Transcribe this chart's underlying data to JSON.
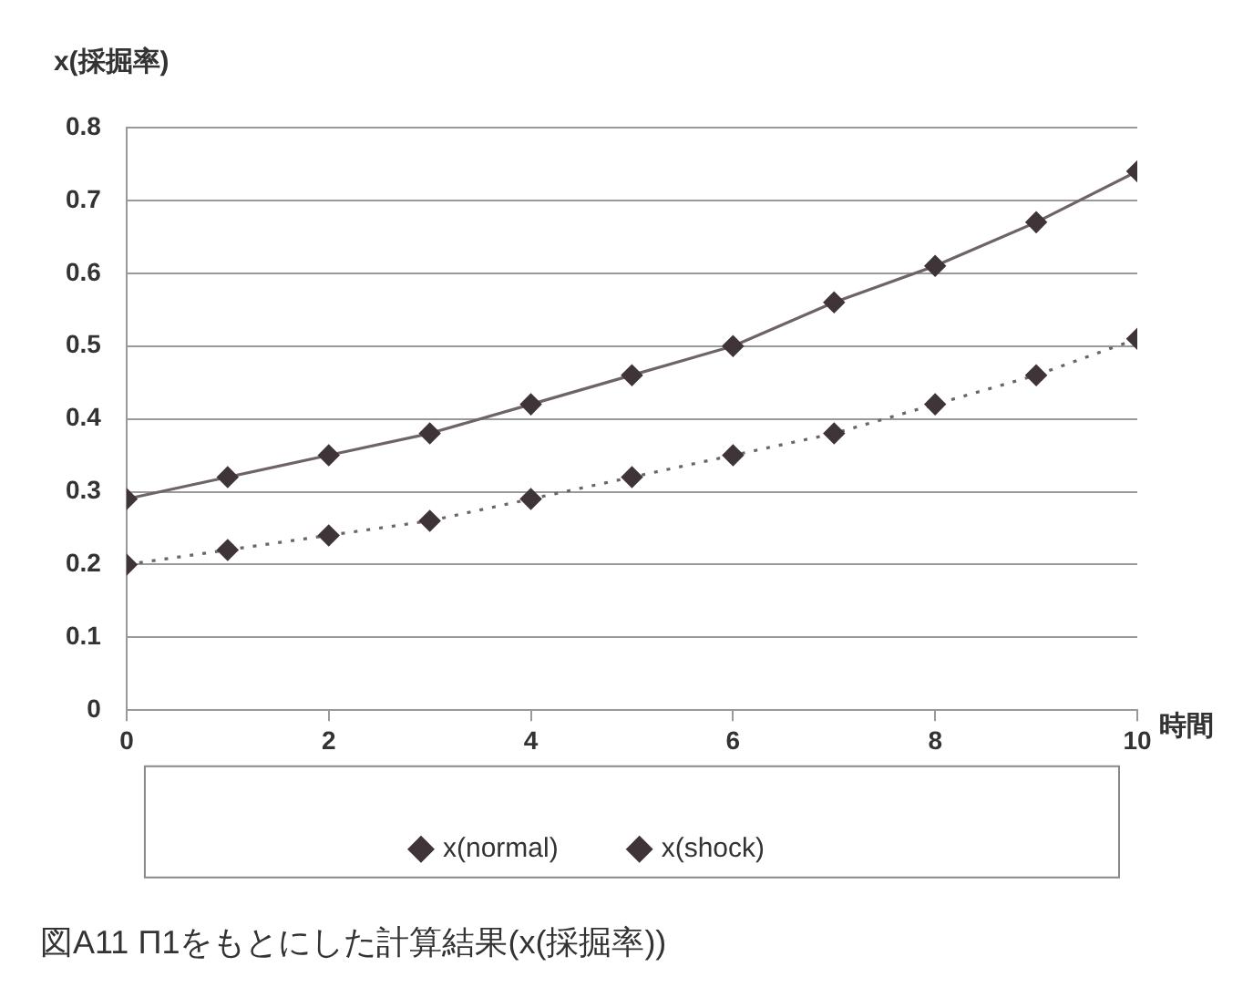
{
  "chart_data": {
    "type": "line",
    "title": "図A11 Π1をもとにした計算結果(x(採掘率))",
    "xlabel": "時間",
    "ylabel": "x(採掘率)",
    "x": [
      0,
      1,
      2,
      3,
      4,
      5,
      6,
      7,
      8,
      9,
      10
    ],
    "series": [
      {
        "name": "x(normal)",
        "color": "#6e6468",
        "line_style": "dotted",
        "values": [
          0.2,
          0.22,
          0.24,
          0.26,
          0.29,
          0.32,
          0.35,
          0.38,
          0.42,
          0.46,
          0.51
        ]
      },
      {
        "name": "x(shock)",
        "color": "#6e6468",
        "line_style": "solid",
        "values": [
          0.29,
          0.32,
          0.35,
          0.38,
          0.42,
          0.46,
          0.5,
          0.56,
          0.61,
          0.67,
          0.74
        ]
      }
    ],
    "xlim": [
      0,
      10
    ],
    "xticks": [
      0,
      2,
      4,
      6,
      8,
      10
    ],
    "ylim": [
      0,
      0.8
    ],
    "yticks": [
      0,
      0.1,
      0.2,
      0.3,
      0.4,
      0.5,
      0.6,
      0.7,
      0.8
    ],
    "grid": "y",
    "legend": "bottom",
    "marker": "diamond"
  }
}
